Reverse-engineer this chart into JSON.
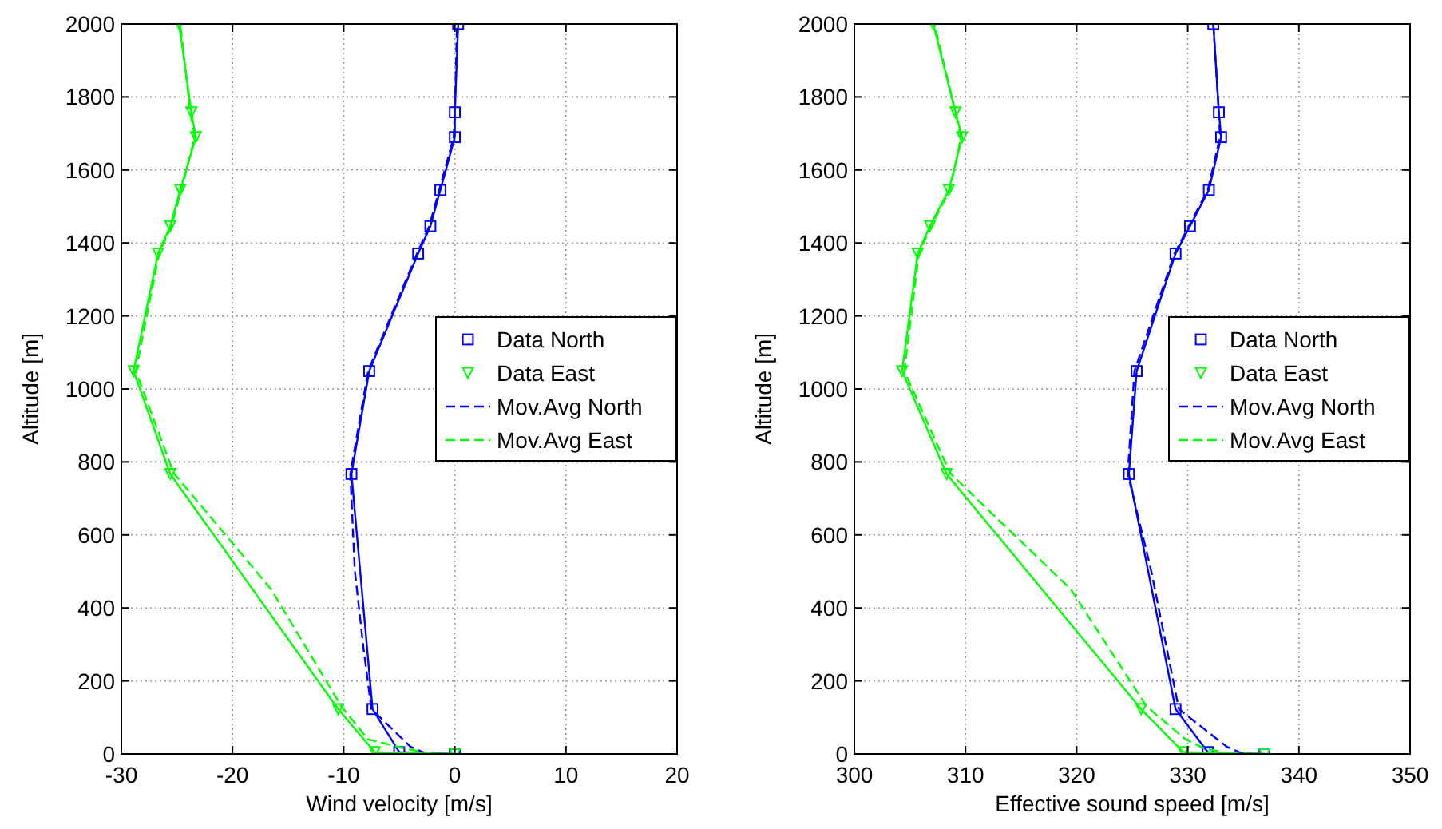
{
  "chart_data": [
    {
      "type": "line",
      "xlabel": "Wind velocity [m/s]",
      "ylabel": "Altitude [m]",
      "xlim": [
        -30,
        20
      ],
      "xticks": [
        -30,
        -20,
        -10,
        0,
        10,
        20
      ],
      "ylim": [
        0,
        2000
      ],
      "yticks": [
        0,
        200,
        400,
        600,
        800,
        1000,
        1200,
        1400,
        1600,
        1800,
        2000
      ],
      "grid": true,
      "legend": "right",
      "series": [
        {
          "name": "Data North",
          "color": "#0000ff",
          "marker": "square",
          "line_style": "solid",
          "x": [
            0,
            -5.0,
            -7.4,
            -9.3,
            -7.7,
            -3.3,
            -2.2,
            -1.3,
            0,
            0,
            0.3
          ],
          "values": [
            0,
            5,
            123,
            767,
            1049,
            1371,
            1446,
            1545,
            1690,
            1758,
            2000
          ]
        },
        {
          "name": "Data East",
          "color": "#00ff00",
          "marker": "triangle",
          "line_style": "solid",
          "x": [
            0,
            -7.2,
            -10.5,
            -25.6,
            -28.9,
            -26.7,
            -25.6,
            -24.7,
            -23.3,
            -23.7,
            -24.8
          ],
          "values": [
            0,
            5,
            123,
            767,
            1049,
            1371,
            1446,
            1545,
            1690,
            1758,
            2000
          ]
        },
        {
          "name": "Mov.Avg North",
          "color": "#0000ff",
          "marker": "none",
          "line_style": "dashed",
          "x": [
            -2.5,
            -4.0,
            -7.5,
            -8.2,
            -9.0,
            -9.4,
            -7.8,
            -3.4,
            -2.3,
            -1.4,
            -0.1,
            0,
            0.2
          ],
          "values": [
            0,
            20,
            123,
            286,
            503,
            767,
            1049,
            1371,
            1446,
            1545,
            1690,
            1758,
            2000
          ]
        },
        {
          "name": "Mov.Avg East",
          "color": "#00ff00",
          "marker": "none",
          "line_style": "dashed",
          "x": [
            -2,
            -4.5,
            -7.8,
            -10.2,
            -16.5,
            -25.3,
            -28.7,
            -26.6,
            -25.5,
            -24.6,
            -23.4,
            -23.8,
            -24.7
          ],
          "values": [
            0,
            15,
            40,
            130,
            450,
            770,
            1049,
            1371,
            1446,
            1545,
            1690,
            1758,
            2000
          ]
        }
      ]
    },
    {
      "type": "line",
      "xlabel": "Effective sound speed [m/s]",
      "ylabel": "Altitude [m]",
      "xlim": [
        300,
        350
      ],
      "xticks": [
        300,
        310,
        320,
        330,
        340,
        350
      ],
      "ylim": [
        0,
        2000
      ],
      "yticks": [
        0,
        200,
        400,
        600,
        800,
        1000,
        1200,
        1400,
        1600,
        1800,
        2000
      ],
      "grid": true,
      "legend": "right",
      "series": [
        {
          "name": "Data North",
          "color": "#0000ff",
          "marker": "square",
          "line_style": "solid",
          "x": [
            336.9,
            331.8,
            328.9,
            324.7,
            325.4,
            328.9,
            330.2,
            331.9,
            333.0,
            332.8,
            332.3
          ],
          "values": [
            0,
            5,
            123,
            767,
            1049,
            1371,
            1446,
            1545,
            1690,
            1758,
            2000
          ]
        },
        {
          "name": "Data East",
          "color": "#00ff00",
          "marker": "triangle",
          "line_style": "solid",
          "x": [
            336.9,
            329.6,
            325.8,
            308.3,
            304.3,
            305.7,
            306.8,
            308.5,
            309.7,
            309.1,
            307.1
          ],
          "values": [
            0,
            5,
            123,
            767,
            1049,
            1371,
            1446,
            1545,
            1690,
            1758,
            2000
          ]
        },
        {
          "name": "Mov.Avg North",
          "color": "#0000ff",
          "marker": "none",
          "line_style": "dashed",
          "x": [
            335.0,
            333.5,
            329.2,
            326.7,
            324.6,
            325.2,
            328.8,
            330.1,
            331.8,
            332.9,
            332.8,
            332.3
          ],
          "values": [
            0,
            20,
            123,
            503,
            767,
            1049,
            1371,
            1446,
            1545,
            1690,
            1758,
            2000
          ]
        },
        {
          "name": "Mov.Avg East",
          "color": "#00ff00",
          "marker": "none",
          "line_style": "dashed",
          "x": [
            334,
            331.5,
            329.8,
            326.3,
            319.5,
            308.6,
            304.5,
            305.8,
            306.9,
            308.6,
            309.6,
            309.1,
            307.2
          ],
          "values": [
            0,
            15,
            40,
            130,
            450,
            770,
            1049,
            1371,
            1446,
            1545,
            1690,
            1758,
            2000
          ]
        }
      ]
    }
  ]
}
